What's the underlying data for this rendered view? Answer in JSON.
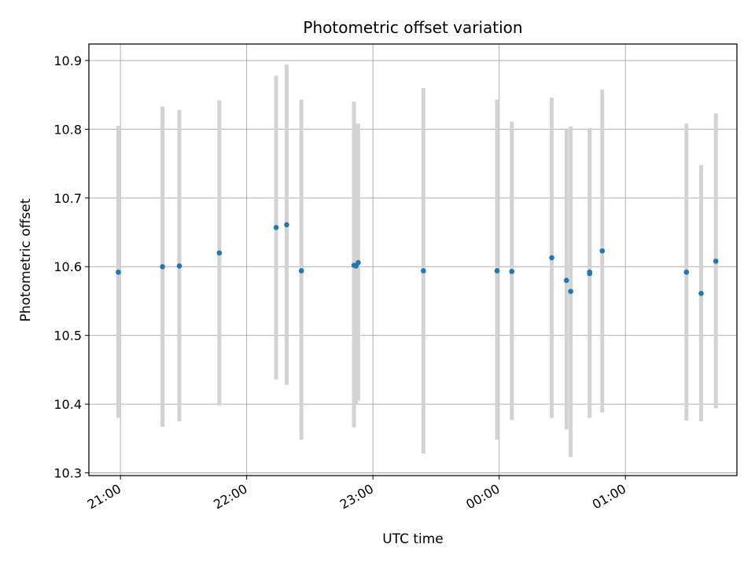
{
  "chart_data": {
    "type": "scatter",
    "title": "Photometric offset variation",
    "xlabel": "UTC time",
    "ylabel": "Photometric offset",
    "x_axis_type": "time",
    "x_range": [
      "20:45",
      "25:53"
    ],
    "ylim": [
      10.296,
      10.924
    ],
    "x_ticks": [
      {
        "label": "21:00",
        "time": "21:00"
      },
      {
        "label": "22:00",
        "time": "22:00"
      },
      {
        "label": "23:00",
        "time": "23:00"
      },
      {
        "label": "00:00",
        "time": "24:00"
      },
      {
        "label": "01:00",
        "time": "25:00"
      }
    ],
    "y_ticks": [
      "10.3",
      "10.4",
      "10.5",
      "10.6",
      "10.7",
      "10.8",
      "10.9"
    ],
    "grid": true,
    "marker_color": "#1f77b4",
    "errorbar_color": "#d3d3d3",
    "points": [
      {
        "time": "20:59",
        "y": 10.592,
        "low": 10.38,
        "high": 10.805
      },
      {
        "time": "21:20",
        "y": 10.6,
        "low": 10.367,
        "high": 10.833
      },
      {
        "time": "21:28",
        "y": 10.601,
        "low": 10.375,
        "high": 10.828
      },
      {
        "time": "21:47",
        "y": 10.62,
        "low": 10.398,
        "high": 10.842
      },
      {
        "time": "22:14",
        "y": 10.657,
        "low": 10.436,
        "high": 10.878
      },
      {
        "time": "22:19",
        "y": 10.661,
        "low": 10.428,
        "high": 10.894
      },
      {
        "time": "22:26",
        "y": 10.594,
        "low": 10.348,
        "high": 10.843
      },
      {
        "time": "22:51",
        "y": 10.602,
        "low": 10.366,
        "high": 10.84
      },
      {
        "time": "22:52",
        "y": 10.601,
        "low": 10.4,
        "high": 10.807
      },
      {
        "time": "22:53",
        "y": 10.606,
        "low": 10.405,
        "high": 10.808
      },
      {
        "time": "23:24",
        "y": 10.594,
        "low": 10.328,
        "high": 10.86
      },
      {
        "time": "23:59",
        "y": 10.594,
        "low": 10.348,
        "high": 10.843
      },
      {
        "time": "24:06",
        "y": 10.593,
        "low": 10.377,
        "high": 10.811
      },
      {
        "time": "24:25",
        "y": 10.613,
        "low": 10.38,
        "high": 10.846
      },
      {
        "time": "24:32",
        "y": 10.58,
        "low": 10.363,
        "high": 10.8
      },
      {
        "time": "24:34",
        "y": 10.564,
        "low": 10.323,
        "high": 10.804
      },
      {
        "time": "24:43",
        "y": 10.59,
        "low": 10.38,
        "high": 10.802
      },
      {
        "time": "24:43",
        "y": 10.592,
        "low": 10.385,
        "high": 10.8
      },
      {
        "time": "24:49",
        "y": 10.623,
        "low": 10.388,
        "high": 10.858
      },
      {
        "time": "25:29",
        "y": 10.592,
        "low": 10.376,
        "high": 10.808
      },
      {
        "time": "25:36",
        "y": 10.561,
        "low": 10.375,
        "high": 10.748
      },
      {
        "time": "25:43",
        "y": 10.608,
        "low": 10.394,
        "high": 10.823
      }
    ]
  }
}
